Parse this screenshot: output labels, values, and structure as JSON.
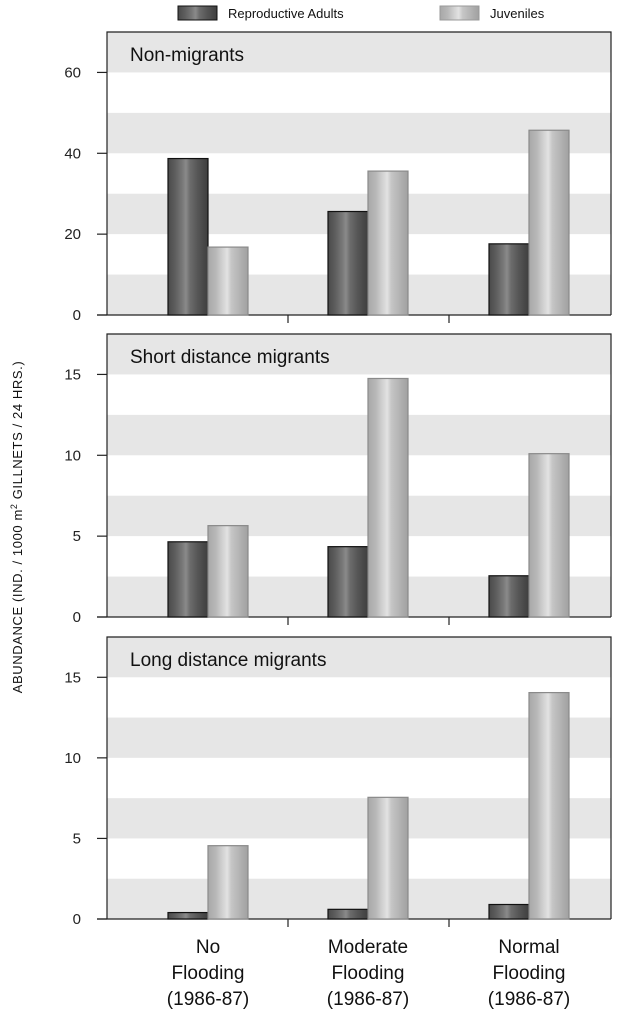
{
  "chart_data": {
    "type": "bar",
    "ylabel": {
      "prefix": "ABUNDANCE (IND. / 1000 m",
      "sup": "2",
      "suffix": " GILLNETS / 24 HRS.)"
    },
    "categories": [
      {
        "lines": [
          "No",
          "Flooding",
          "(1986-87)"
        ]
      },
      {
        "lines": [
          "Moderate",
          "Flooding",
          "(1986-87)"
        ]
      },
      {
        "lines": [
          "Normal",
          "Flooding",
          "(1986-87)"
        ]
      }
    ],
    "legend": {
      "placement": "top-center"
    },
    "series": [
      {
        "name": "Reproductive Adults",
        "color": "#5a5a5a"
      },
      {
        "name": "Juveniles",
        "color": "#b8b8b8"
      }
    ],
    "panels": [
      {
        "title": "Non-migrants",
        "ylim": [
          0,
          60
        ],
        "yticks": [
          0,
          20,
          40,
          60
        ],
        "band_step": 10,
        "top_value": 70,
        "values": {
          "Reproductive Adults": [
            38.7,
            25.6,
            17.6
          ],
          "Juveniles": [
            16.8,
            35.6,
            45.7
          ]
        }
      },
      {
        "title": "Short distance migrants",
        "ylim": [
          0,
          15
        ],
        "yticks": [
          0,
          5,
          10,
          15
        ],
        "band_step": 2.5,
        "top_value": 17.5,
        "values": {
          "Reproductive Adults": [
            4.65,
            4.35,
            2.55
          ],
          "Juveniles": [
            5.65,
            14.75,
            10.1
          ]
        }
      },
      {
        "title": "Long distance migrants",
        "ylim": [
          0,
          15
        ],
        "yticks": [
          0,
          5,
          10,
          15
        ],
        "band_step": 2.5,
        "top_value": 17.5,
        "values": {
          "Reproductive Adults": [
            0.4,
            0.6,
            0.9
          ],
          "Juveniles": [
            4.55,
            7.55,
            14.05
          ]
        }
      }
    ]
  }
}
